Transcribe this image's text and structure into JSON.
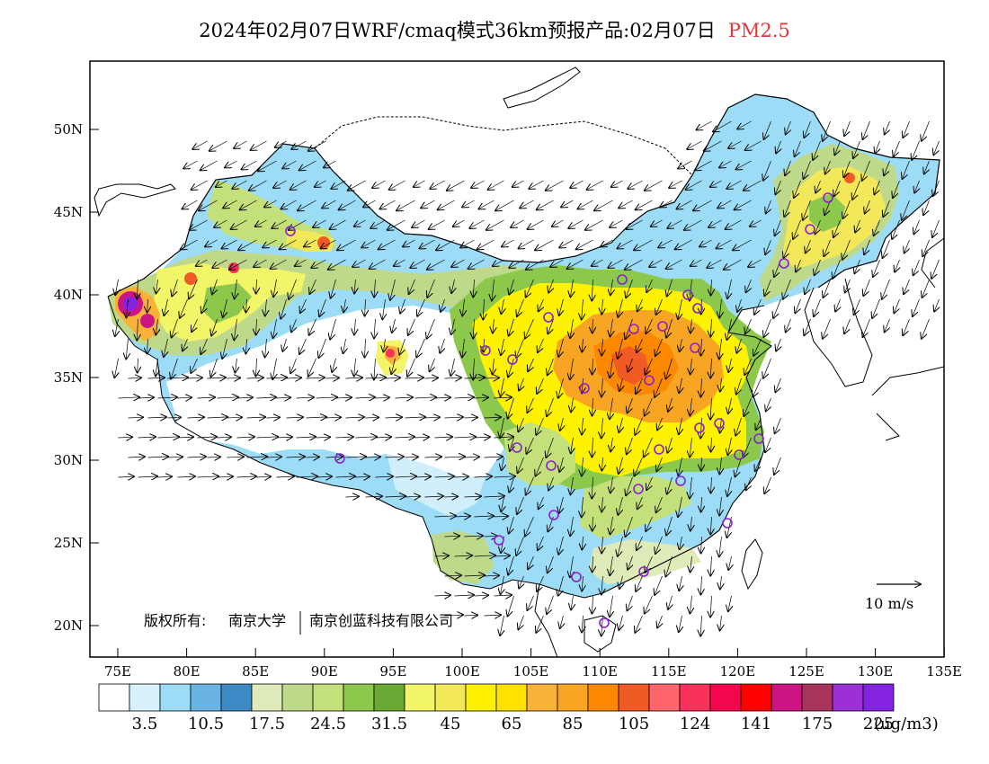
{
  "title": {
    "main": "2024年02月07日WRF/cmaq模式36km预报产品:02月07日",
    "pollutant": "PM2.5"
  },
  "axes": {
    "lat_ticks": [
      "50N",
      "45N",
      "40N",
      "35N",
      "30N",
      "25N",
      "20N"
    ],
    "lon_ticks": [
      "75E",
      "80E",
      "85E",
      "90E",
      "95E",
      "100E",
      "105E",
      "110E",
      "115E",
      "120E",
      "125E",
      "130E",
      "135E"
    ]
  },
  "copyright": {
    "prefix": "版权所有:",
    "org1": "南京大学",
    "org2": "南京创蓝科技有限公司"
  },
  "wind_scale": {
    "label": "10 m/s"
  },
  "colorbar": {
    "colors": [
      "#ffffff",
      "#d9f1fc",
      "#9ddcf7",
      "#69b4e2",
      "#3e8ac4",
      "#dfeab9",
      "#bfd98a",
      "#c4e07a",
      "#8cc84b",
      "#69a832",
      "#f2f567",
      "#f2e85a",
      "#fff200",
      "#ffe100",
      "#f8b23a",
      "#f9a524",
      "#fc8800",
      "#f05a24",
      "#ff666b",
      "#f8325a",
      "#f4064e",
      "#ff0000",
      "#cc1583",
      "#a8345c",
      "#9b30d9",
      "#8424e0"
    ],
    "labels": [
      "3.5",
      "10.5",
      "17.5",
      "24.5",
      "31.5",
      "45",
      "65",
      "85",
      "105",
      "124",
      "141",
      "175",
      "225"
    ],
    "unit": "(ug/m3)"
  }
}
